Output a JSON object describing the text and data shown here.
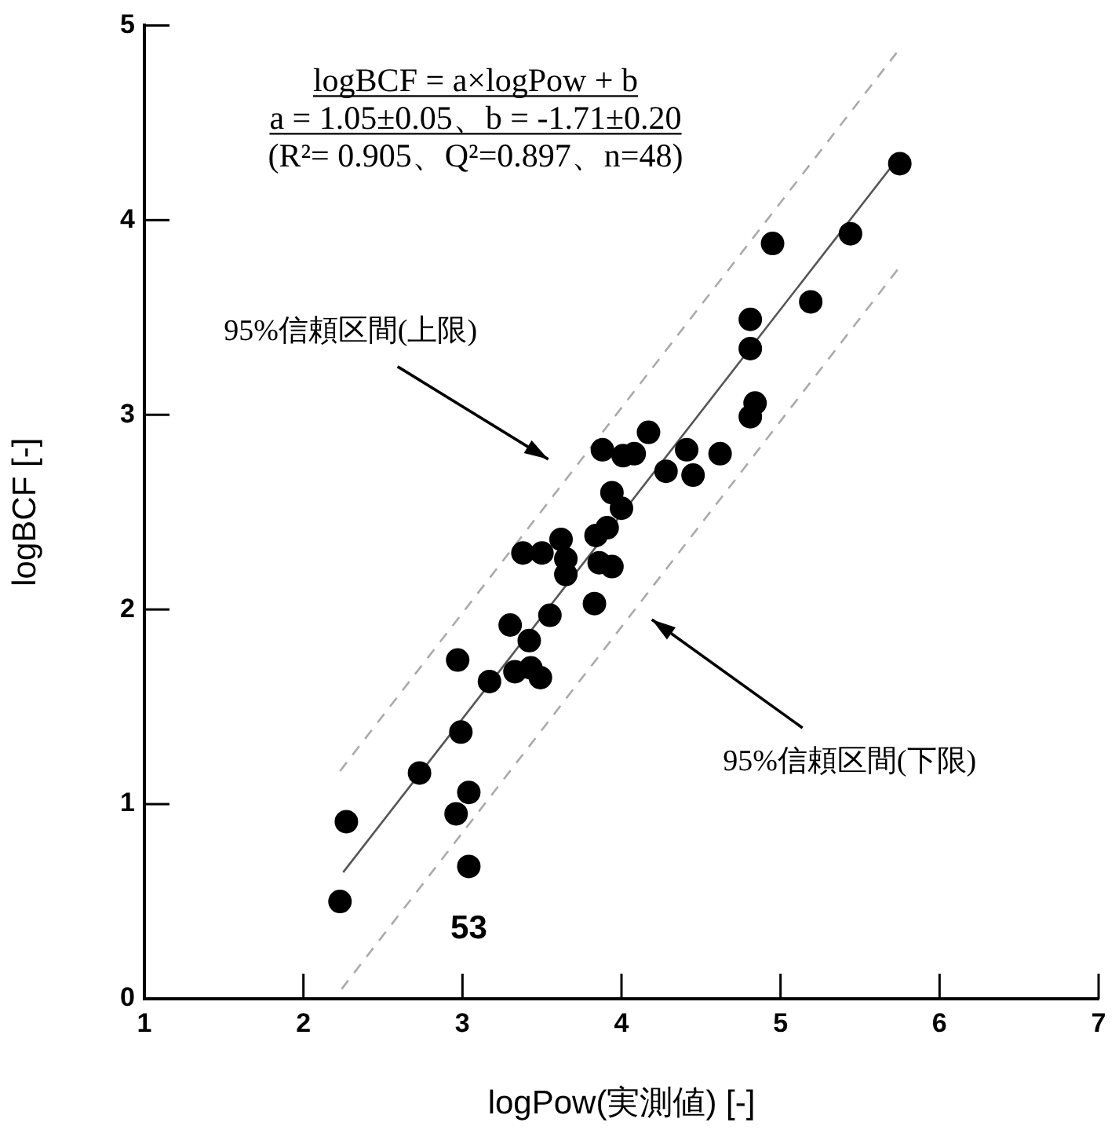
{
  "chart_data": {
    "type": "scatter",
    "xlabel": "logPow(実測値) [-]",
    "ylabel": "logBCF [-]",
    "xlim": [
      1,
      7
    ],
    "xticks": [
      1,
      2,
      3,
      4,
      5,
      6,
      7
    ],
    "ylim": [
      0,
      5
    ],
    "yticks": [
      0,
      1,
      2,
      3,
      4,
      5
    ],
    "grid": false,
    "legend": false,
    "marker": "circle",
    "series": [
      {
        "color": "#000000",
        "x": [
          2.23,
          2.27,
          2.73,
          2.96,
          3.04,
          3.04,
          2.99,
          2.97,
          3.17,
          3.33,
          3.43,
          3.49,
          3.3,
          3.42,
          3.55,
          3.83,
          3.38,
          3.5,
          3.62,
          3.65,
          3.65,
          3.84,
          3.91,
          3.86,
          3.94,
          3.94,
          4.0,
          3.88,
          4.01,
          4.08,
          4.17,
          4.28,
          4.41,
          4.45,
          4.62,
          4.81,
          4.84,
          4.81,
          4.81,
          5.19,
          4.95,
          5.44,
          5.75
        ],
        "values": [
          0.5,
          0.91,
          1.16,
          0.95,
          1.06,
          0.68,
          1.37,
          1.74,
          1.63,
          1.68,
          1.7,
          1.65,
          1.92,
          1.84,
          1.97,
          2.03,
          2.29,
          2.29,
          2.36,
          2.26,
          2.18,
          2.38,
          2.42,
          2.24,
          2.22,
          2.6,
          2.52,
          2.82,
          2.79,
          2.8,
          2.91,
          2.71,
          2.82,
          2.69,
          2.8,
          2.99,
          3.06,
          3.34,
          3.49,
          3.58,
          3.88,
          3.93,
          4.29
        ]
      },
      {
        "type": "line",
        "color": "#555555",
        "line_style": "solid",
        "marker": "none",
        "x": [
          2.25,
          5.75
        ],
        "values": [
          0.65,
          4.33
        ]
      },
      {
        "type": "line",
        "color": "#aaaaaa",
        "line_style": "dashed",
        "marker": "none",
        "x": [
          2.23,
          5.73
        ],
        "values": [
          1.17,
          4.86
        ]
      },
      {
        "type": "line",
        "color": "#aaaaaa",
        "line_style": "dashed",
        "marker": "none",
        "x": [
          2.24,
          5.74
        ],
        "values": [
          0.05,
          3.75
        ]
      }
    ],
    "annotations": [
      "logBCF = a×logPow + b",
      "a = 1.05±0.05、b = -1.71±0.20",
      "(R²= 0.905、Q²=0.897、n=48)",
      {
        "text": "95%信頼区間(上限)",
        "x": 3.48,
        "y": 2.82
      },
      {
        "text": "95%信頼区間(下限)",
        "x": 4.25,
        "y": 1.9
      },
      {
        "text": "53",
        "x": 3.04,
        "y": 0.68
      }
    ]
  }
}
